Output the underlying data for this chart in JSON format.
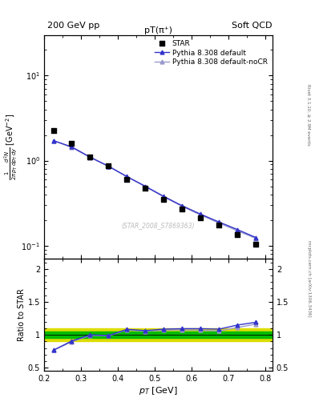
{
  "title_top_left": "200 GeV pp",
  "title_top_right": "Soft QCD",
  "plot_title": "pT(π⁺)",
  "right_label_top": "Rivet 3.1.10, ≥ 2.9M events",
  "right_label_bottom": "mcplots.cern.ch [arXiv:1306.3436]",
  "watermark": "(STAR_2008_S7869363)",
  "ylabel_main": "$\\frac{1}{2\\pi p_T}\\frac{d^2N}{dp_T\\,dy}$ [GeV$^{-2}$]",
  "ylabel_ratio": "Ratio to STAR",
  "xlabel": "$p_T$ [GeV]",
  "xlim": [
    0.2,
    0.82
  ],
  "ylim_main": [
    0.07,
    30
  ],
  "ylim_ratio": [
    0.45,
    2.15
  ],
  "star_pt": [
    0.225,
    0.275,
    0.325,
    0.375,
    0.425,
    0.475,
    0.525,
    0.575,
    0.625,
    0.675,
    0.725,
    0.775
  ],
  "star_y": [
    2.25,
    1.6,
    1.1,
    0.87,
    0.6,
    0.47,
    0.35,
    0.27,
    0.215,
    0.175,
    0.135,
    0.105
  ],
  "pythia_default_pt": [
    0.225,
    0.275,
    0.325,
    0.375,
    0.425,
    0.475,
    0.525,
    0.575,
    0.625,
    0.675,
    0.725,
    0.775
  ],
  "pythia_default_y": [
    1.72,
    1.45,
    1.1,
    0.86,
    0.65,
    0.5,
    0.38,
    0.295,
    0.235,
    0.19,
    0.155,
    0.125
  ],
  "pythia_nocr_pt": [
    0.225,
    0.275,
    0.325,
    0.375,
    0.425,
    0.475,
    0.525,
    0.575,
    0.625,
    0.675,
    0.725,
    0.775
  ],
  "pythia_nocr_y": [
    1.72,
    1.43,
    1.09,
    0.855,
    0.645,
    0.495,
    0.375,
    0.29,
    0.23,
    0.185,
    0.15,
    0.122
  ],
  "ratio_default_pt": [
    0.225,
    0.275,
    0.325,
    0.375,
    0.425,
    0.475,
    0.525,
    0.575,
    0.625,
    0.675,
    0.725,
    0.775
  ],
  "ratio_default_y": [
    0.765,
    0.906,
    1.0,
    0.989,
    1.083,
    1.064,
    1.086,
    1.093,
    1.093,
    1.086,
    1.148,
    1.19
  ],
  "ratio_nocr_pt": [
    0.225,
    0.275,
    0.325,
    0.375,
    0.425,
    0.475,
    0.525,
    0.575,
    0.625,
    0.675,
    0.725,
    0.775
  ],
  "ratio_nocr_y": [
    0.765,
    0.894,
    0.991,
    0.983,
    1.075,
    1.053,
    1.071,
    1.074,
    1.07,
    1.057,
    1.111,
    1.162
  ],
  "color_default": "#3333cc",
  "color_nocr": "#9999cc",
  "color_star": "#000000",
  "band_green": "#00bb00",
  "band_yellow": "#dddd00",
  "band_green_lo": 0.95,
  "band_green_hi": 1.05,
  "band_yellow_lo": 0.9,
  "band_yellow_hi": 1.1
}
